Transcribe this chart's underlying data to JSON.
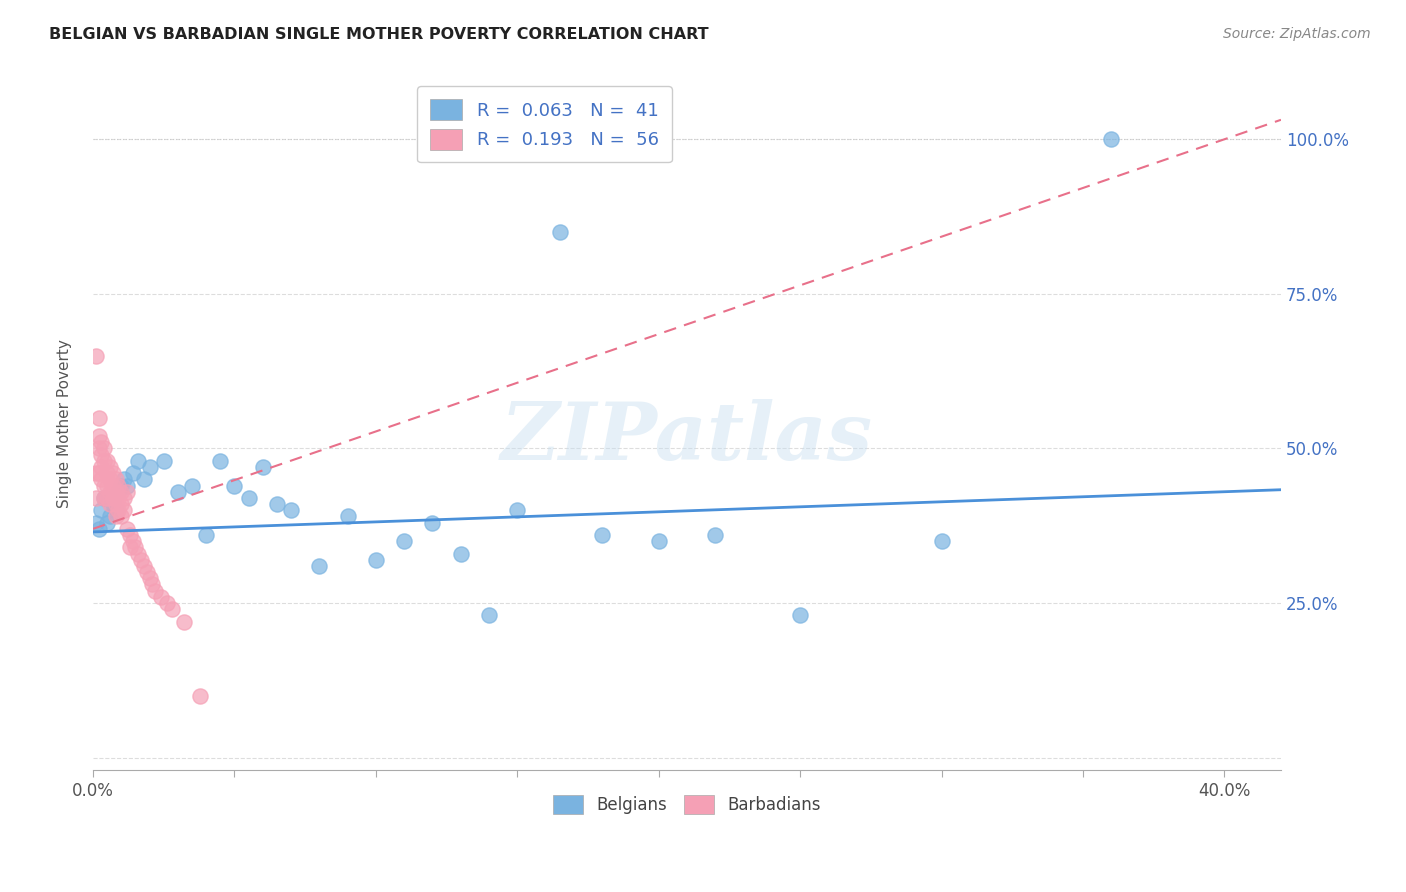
{
  "title": "BELGIAN VS BARBADIAN SINGLE MOTHER POVERTY CORRELATION CHART",
  "source": "Source: ZipAtlas.com",
  "ylabel": "Single Mother Poverty",
  "yticks": [
    0.0,
    0.25,
    0.5,
    0.75,
    1.0
  ],
  "ytick_labels": [
    "",
    "25.0%",
    "50.0%",
    "75.0%",
    "100.0%"
  ],
  "xtick_positions": [
    0.0,
    0.05,
    0.1,
    0.15,
    0.2,
    0.25,
    0.3,
    0.35,
    0.4
  ],
  "xlim": [
    0.0,
    0.42
  ],
  "ylim": [
    -0.02,
    1.1
  ],
  "belgian_color": "#7ab3e0",
  "barbadian_color": "#f5a0b5",
  "belgian_line_color": "#4a90d9",
  "barbadian_line_color": "#e8708a",
  "belgian_R": 0.063,
  "belgian_N": 41,
  "barbadian_R": 0.193,
  "barbadian_N": 56,
  "belgians_x": [
    0.001,
    0.002,
    0.003,
    0.004,
    0.005,
    0.006,
    0.007,
    0.008,
    0.009,
    0.01,
    0.011,
    0.012,
    0.014,
    0.016,
    0.018,
    0.02,
    0.025,
    0.03,
    0.035,
    0.04,
    0.045,
    0.05,
    0.055,
    0.06,
    0.065,
    0.07,
    0.08,
    0.09,
    0.1,
    0.11,
    0.12,
    0.13,
    0.14,
    0.15,
    0.165,
    0.18,
    0.2,
    0.22,
    0.25,
    0.3,
    0.36
  ],
  "belgians_y": [
    0.38,
    0.37,
    0.4,
    0.42,
    0.38,
    0.39,
    0.41,
    0.4,
    0.43,
    0.44,
    0.45,
    0.44,
    0.46,
    0.48,
    0.45,
    0.47,
    0.48,
    0.43,
    0.44,
    0.36,
    0.48,
    0.44,
    0.42,
    0.47,
    0.41,
    0.4,
    0.31,
    0.39,
    0.32,
    0.35,
    0.38,
    0.33,
    0.23,
    0.4,
    0.85,
    0.36,
    0.35,
    0.36,
    0.23,
    0.35,
    1.0
  ],
  "barbadians_x": [
    0.001,
    0.001,
    0.001,
    0.002,
    0.002,
    0.002,
    0.002,
    0.003,
    0.003,
    0.003,
    0.003,
    0.004,
    0.004,
    0.004,
    0.004,
    0.005,
    0.005,
    0.005,
    0.005,
    0.006,
    0.006,
    0.006,
    0.006,
    0.007,
    0.007,
    0.007,
    0.008,
    0.008,
    0.008,
    0.008,
    0.009,
    0.009,
    0.009,
    0.01,
    0.01,
    0.01,
    0.011,
    0.011,
    0.012,
    0.012,
    0.013,
    0.013,
    0.014,
    0.015,
    0.016,
    0.017,
    0.018,
    0.019,
    0.02,
    0.021,
    0.022,
    0.024,
    0.026,
    0.028,
    0.032,
    0.038
  ],
  "barbadians_y": [
    0.65,
    0.46,
    0.42,
    0.55,
    0.52,
    0.5,
    0.46,
    0.51,
    0.49,
    0.47,
    0.45,
    0.5,
    0.48,
    0.44,
    0.42,
    0.48,
    0.46,
    0.44,
    0.42,
    0.47,
    0.45,
    0.43,
    0.41,
    0.46,
    0.44,
    0.42,
    0.45,
    0.43,
    0.41,
    0.39,
    0.44,
    0.42,
    0.4,
    0.43,
    0.41,
    0.39,
    0.42,
    0.4,
    0.43,
    0.37,
    0.36,
    0.34,
    0.35,
    0.34,
    0.33,
    0.32,
    0.31,
    0.3,
    0.29,
    0.28,
    0.27,
    0.26,
    0.25,
    0.24,
    0.22,
    0.1
  ],
  "watermark": "ZIPatlas",
  "background_color": "#ffffff",
  "grid_color": "#dddddd"
}
